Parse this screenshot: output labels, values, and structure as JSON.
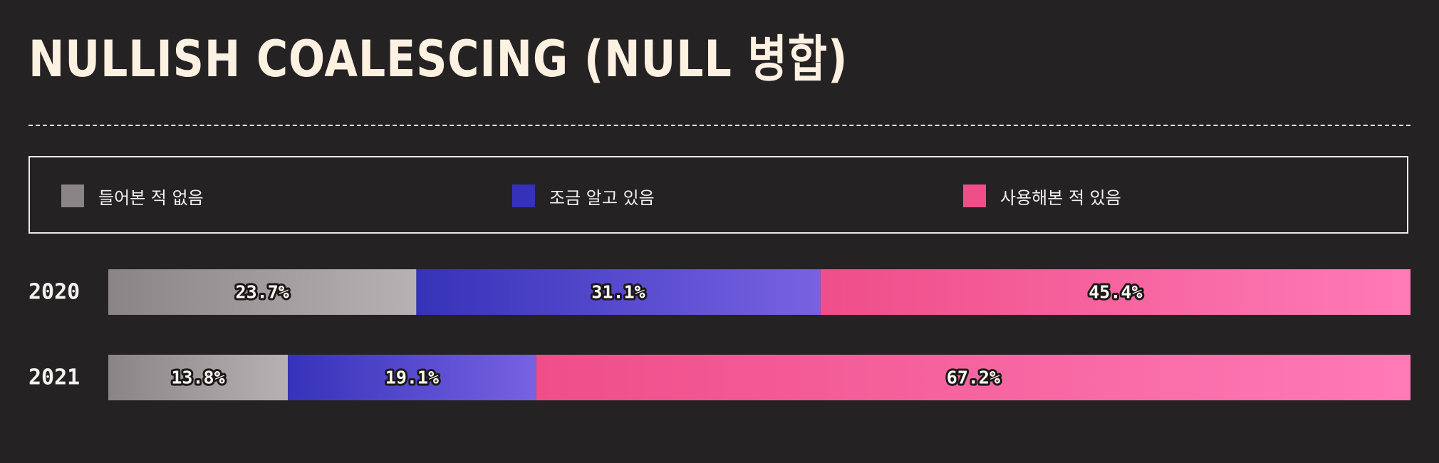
{
  "title": "NULLISH COALESCING (NULL 병합)",
  "legend": [
    {
      "label": "들어본 적 없음",
      "color": "#8b8486"
    },
    {
      "label": "조금 알고 있음",
      "color": "#3532b9"
    },
    {
      "label": "사용해본 적 있음",
      "color": "#ef4e89"
    }
  ],
  "chart_data": {
    "type": "bar",
    "orientation": "horizontal",
    "stacked": true,
    "categories": [
      "2020",
      "2021"
    ],
    "series": [
      {
        "name": "들어본 적 없음",
        "values": [
          23.7,
          13.8
        ],
        "labels": [
          "23.7%",
          "13.8%"
        ],
        "gradient": [
          "#8b8486",
          "#b8b1b3"
        ]
      },
      {
        "name": "조금 알고 있음",
        "values": [
          31.1,
          19.1
        ],
        "labels": [
          "31.1%",
          "19.1%"
        ],
        "gradient": [
          "#3532b9",
          "#7862e2"
        ]
      },
      {
        "name": "사용해본 적 있음",
        "values": [
          45.4,
          67.2
        ],
        "labels": [
          "45.4%",
          "67.2%"
        ],
        "gradient": [
          "#ef4e89",
          "#fe7ab6"
        ]
      }
    ],
    "xlim": [
      0,
      100
    ],
    "legend_position": "top"
  }
}
